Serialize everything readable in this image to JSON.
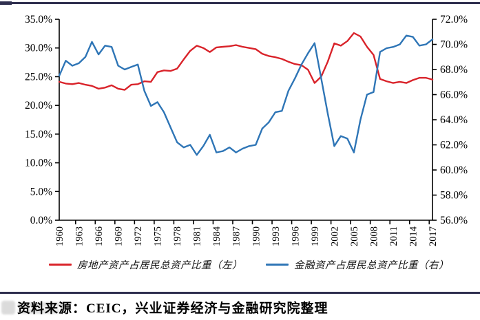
{
  "footer": {
    "source_text": "资料来源：CEIC，兴业证券经济与金融研究院整理",
    "rule_color": "#2f2f4f"
  },
  "legend": {
    "items": [
      {
        "label": "房地产资产占居民总资产比重（左）",
        "color": "#d9232a"
      },
      {
        "label": "金融资产占居民总资产比重（右）",
        "color": "#2e75b6"
      }
    ]
  },
  "chart_data": {
    "type": "line",
    "title": "",
    "xlabel": "",
    "ylabel_left": "",
    "ylabel_right": "",
    "grid": false,
    "legend_position": "bottom",
    "x": [
      1960,
      1961,
      1962,
      1963,
      1964,
      1965,
      1966,
      1967,
      1968,
      1969,
      1970,
      1971,
      1972,
      1973,
      1974,
      1975,
      1976,
      1977,
      1978,
      1979,
      1980,
      1981,
      1982,
      1983,
      1984,
      1985,
      1986,
      1987,
      1988,
      1989,
      1990,
      1991,
      1992,
      1993,
      1994,
      1995,
      1996,
      1997,
      1998,
      1999,
      2000,
      2001,
      2002,
      2003,
      2004,
      2005,
      2006,
      2007,
      2008,
      2009,
      2010,
      2011,
      2012,
      2013,
      2014,
      2015,
      2016,
      2017
    ],
    "x_tick_labels": [
      "1960",
      "1963",
      "1966",
      "1969",
      "1972",
      "1975",
      "1978",
      "1981",
      "1984",
      "1987",
      "1990",
      "1993",
      "1996",
      "1999",
      "2002",
      "2005",
      "2008",
      "2011",
      "2014",
      "2017"
    ],
    "left_axis": {
      "min": 0,
      "max": 35,
      "step": 5,
      "labels": [
        "35.0%",
        "30.0%",
        "25.0%",
        "20.0%",
        "15.0%",
        "10.0%",
        "5.0%",
        "0.0%"
      ]
    },
    "right_axis": {
      "min": 56,
      "max": 72,
      "step": 2,
      "labels": [
        "72.0%",
        "70.0%",
        "68.0%",
        "66.0%",
        "64.0%",
        "62.0%",
        "60.0%",
        "58.0%",
        "56.0%"
      ]
    },
    "series": [
      {
        "name": "房地产资产占居民总资产比重（左）",
        "axis": "left",
        "color": "#d9232a",
        "values": [
          24.1,
          23.8,
          23.7,
          23.9,
          23.6,
          23.4,
          22.9,
          23.1,
          23.5,
          22.9,
          22.7,
          23.6,
          23.7,
          24.2,
          24.1,
          25.8,
          26.1,
          26.0,
          26.4,
          28.0,
          29.5,
          30.4,
          30.0,
          29.3,
          30.1,
          30.2,
          30.3,
          30.5,
          30.2,
          30.0,
          29.8,
          29.0,
          28.6,
          28.4,
          28.1,
          27.6,
          27.2,
          27.0,
          26.2,
          23.9,
          25.0,
          27.6,
          30.8,
          30.4,
          31.2,
          32.6,
          32.0,
          30.2,
          28.8,
          24.6,
          24.2,
          23.9,
          24.1,
          23.9,
          24.4,
          24.8,
          24.8,
          24.5
        ]
      },
      {
        "name": "金融资产占居民总资产比重（右）",
        "axis": "right",
        "color": "#2e75b6",
        "values": [
          67.5,
          68.7,
          68.3,
          68.5,
          69.0,
          70.2,
          69.2,
          69.9,
          69.8,
          68.3,
          68.0,
          68.2,
          68.4,
          66.3,
          65.1,
          65.4,
          64.6,
          63.4,
          62.2,
          61.8,
          62.0,
          61.2,
          61.9,
          62.8,
          61.4,
          61.5,
          61.8,
          61.4,
          61.7,
          61.9,
          62.0,
          63.3,
          63.8,
          64.6,
          64.7,
          66.3,
          67.3,
          68.4,
          69.3,
          70.1,
          67.3,
          64.5,
          61.9,
          62.7,
          62.5,
          61.4,
          64.0,
          66.0,
          66.2,
          69.4,
          69.7,
          69.8,
          70.0,
          70.7,
          70.6,
          69.9,
          70.0,
          70.4
        ]
      }
    ],
    "axis_color": "#000000"
  }
}
